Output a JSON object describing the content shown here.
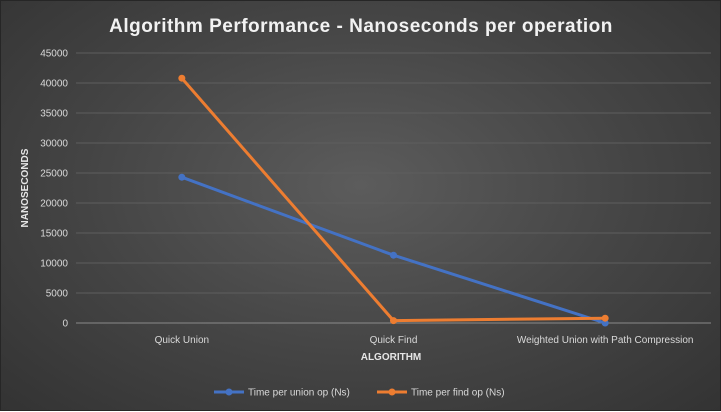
{
  "chart_data": {
    "type": "line",
    "title": "Algorithm  Performance  - Nanoseconds  per operation",
    "xlabel": "ALGORITHM",
    "ylabel": "NANOSECONDS",
    "categories": [
      "Quick Union",
      "Quick Find",
      "Weighted Union with Path Compression"
    ],
    "ylim": [
      0,
      45000
    ],
    "yticks": [
      0,
      5000,
      10000,
      15000,
      20000,
      25000,
      30000,
      35000,
      40000,
      45000
    ],
    "grid": true,
    "legend_position": "bottom",
    "series": [
      {
        "name": "Time per union op (Ns)",
        "color": "#4472c4",
        "values": [
          24300,
          11300,
          0
        ]
      },
      {
        "name": "Time per find op (Ns)",
        "color": "#ed7d31",
        "values": [
          40800,
          400,
          800
        ]
      }
    ]
  }
}
